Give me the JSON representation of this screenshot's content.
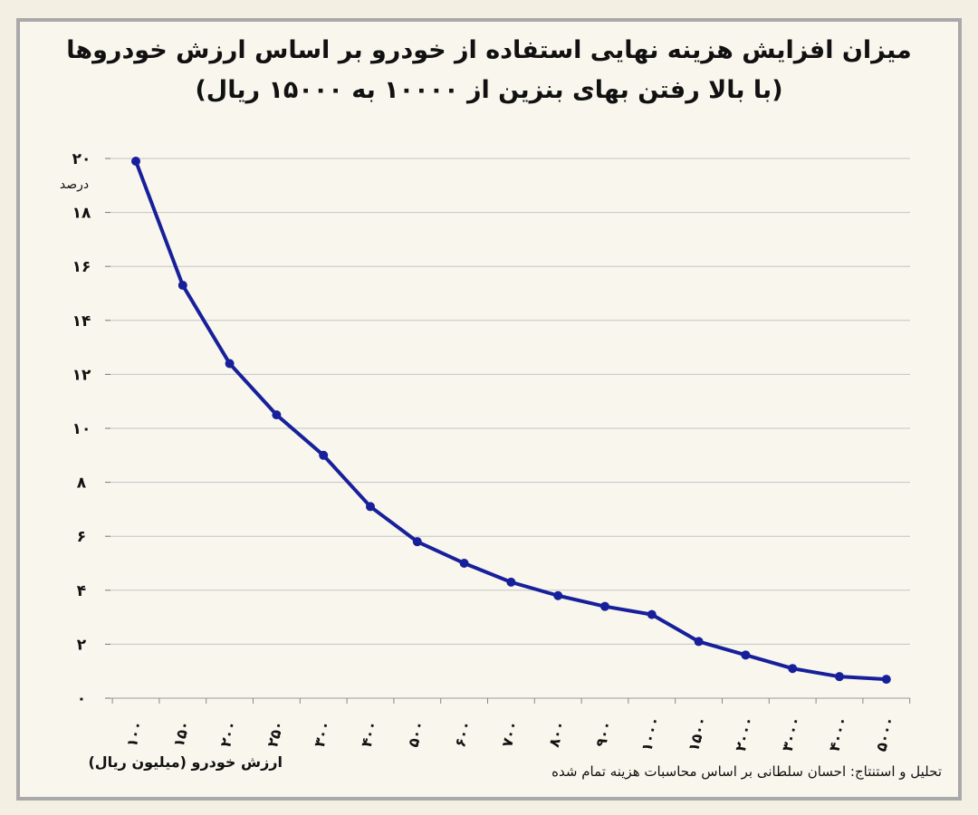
{
  "chart_data": {
    "type": "line",
    "title": "میزان افزایش هزینه نهایی استفاده از خودرو بر اساس ارزش خودروها",
    "subtitle": "(با بالا رفتن بهای بنزین از ۱۰۰۰۰ به ۱۵۰۰۰ ریال)",
    "xlabel": "ارزش خودرو (میلیون ریال)",
    "ylabel": "درصد",
    "ylim": [
      0,
      20
    ],
    "yticks": [
      0,
      2,
      4,
      6,
      8,
      10,
      12,
      14,
      16,
      18,
      20
    ],
    "ytick_labels": [
      "۰",
      "۲",
      "۴",
      "۶",
      "۸",
      "۱۰",
      "۱۲",
      "۱۴",
      "۱۶",
      "۱۸",
      "۲۰"
    ],
    "categories": [
      "۱۰۰",
      "۱۵۰",
      "۲۰۰",
      "۲۵۰",
      "۳۰۰",
      "۴۰۰",
      "۵۰۰",
      "۶۰۰",
      "۷۰۰",
      "۸۰۰",
      "۹۰۰",
      "۱۰۰۰",
      "۱۵۰۰",
      "۲۰۰۰",
      "۳۰۰۰",
      "۴۰۰۰",
      "۵۰۰۰"
    ],
    "series": [
      {
        "values": [
          19.9,
          15.3,
          12.4,
          10.5,
          9.0,
          7.1,
          5.8,
          5.0,
          4.3,
          3.8,
          3.4,
          3.1,
          2.1,
          1.6,
          1.1,
          0.8,
          0.7
        ]
      }
    ],
    "grid": true,
    "line_color": "#17209a"
  },
  "credit": "تحلیل و استنتاج: احسان سلطانی بر اساس محاسبات هزینه تمام شده"
}
